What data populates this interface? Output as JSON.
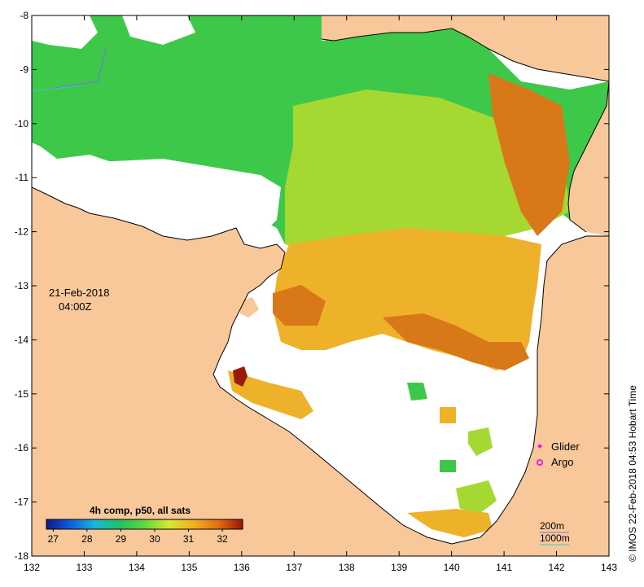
{
  "map": {
    "date": "21-Feb-2018",
    "time": "04:00Z",
    "credit": "© IMOS 22-Feb-2018 04:53 Hobart Time",
    "x_ticks": [
      "132",
      "133",
      "134",
      "135",
      "136",
      "137",
      "138",
      "139",
      "140",
      "141",
      "142",
      "143"
    ],
    "y_ticks": [
      "-8",
      "-9",
      "-10",
      "-11",
      "-12",
      "-13",
      "-14",
      "-15",
      "-16",
      "-17",
      "-18"
    ],
    "legend": [
      {
        "label": "Glider",
        "color": "#e020e0",
        "icon": "diamond-icon"
      },
      {
        "label": "Argo",
        "color": "#e020e0",
        "icon": "ring-icon"
      }
    ],
    "colorbar": {
      "title": "4h comp, p50, all sats",
      "ticks": [
        "27",
        "28",
        "29",
        "30",
        "31",
        "32"
      ],
      "range": [
        26.8,
        32.6
      ],
      "colors": [
        "#0a1a8c",
        "#1060e0",
        "#18b8d8",
        "#20c060",
        "#60d840",
        "#d8e830",
        "#f0b020",
        "#e07010",
        "#a01008"
      ]
    },
    "depth_legend": {
      "line1": "200m",
      "line2": "1000m"
    },
    "colors": {
      "land": "#f8c89a",
      "nodata": "#ffffff",
      "green": "#3ec84a",
      "yellowgreen": "#a6d832",
      "orange": "#eeb12a",
      "darkorange": "#d87818",
      "red": "#9a1c08",
      "marker": "#e020e0"
    }
  }
}
